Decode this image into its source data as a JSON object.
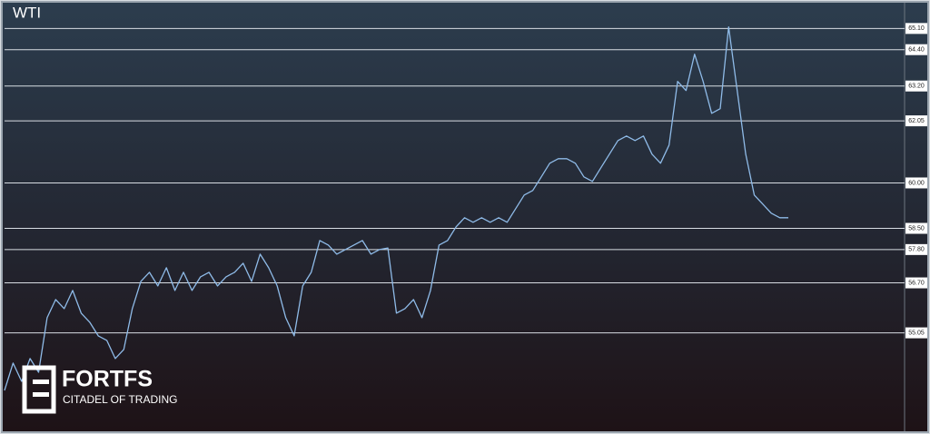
{
  "chart_data": {
    "type": "line",
    "title": "WTI",
    "values": [
      53.15,
      54.05,
      53.45,
      54.2,
      53.75,
      55.55,
      56.15,
      55.85,
      56.45,
      55.7,
      55.4,
      54.95,
      54.8,
      54.2,
      54.5,
      55.85,
      56.75,
      57.05,
      56.6,
      57.2,
      56.45,
      57.05,
      56.45,
      56.9,
      57.05,
      56.6,
      56.9,
      57.05,
      57.35,
      56.75,
      57.65,
      57.2,
      56.6,
      55.55,
      54.95,
      56.6,
      57.05,
      58.1,
      57.95,
      57.65,
      57.8,
      57.95,
      58.1,
      57.65,
      57.8,
      57.85,
      55.7,
      55.85,
      56.15,
      55.55,
      56.45,
      57.95,
      58.1,
      58.55,
      58.85,
      58.7,
      58.85,
      58.7,
      58.85,
      58.7,
      59.15,
      59.6,
      59.75,
      60.2,
      60.65,
      60.8,
      60.8,
      60.65,
      60.2,
      60.05,
      60.5,
      60.95,
      61.4,
      61.55,
      61.4,
      61.55,
      60.95,
      60.65,
      61.25,
      63.35,
      63.05,
      64.25,
      63.35,
      62.3,
      62.45,
      65.15,
      63.05,
      60.95,
      59.6,
      59.3,
      59.0,
      58.85,
      58.85
    ],
    "color": "#8fbbe8",
    "ylim": [
      51.8,
      65.95
    ],
    "yticks": [
      {
        "value": 65.1,
        "label": "65.10"
      },
      {
        "value": 64.4,
        "label": "64.40"
      },
      {
        "value": 63.2,
        "label": "63.20"
      },
      62.05,
      {
        "value": 60,
        "label": "60.00"
      },
      {
        "value": 58.5,
        "label": "58.50"
      },
      {
        "value": 57.8,
        "label": "57.80"
      },
      {
        "value": 56.7,
        "label": "56.70"
      },
      55.05
    ],
    "grid": true
  },
  "watermark": {
    "name": "FORTFS",
    "tagline": "CITADEL OF TRADING"
  }
}
